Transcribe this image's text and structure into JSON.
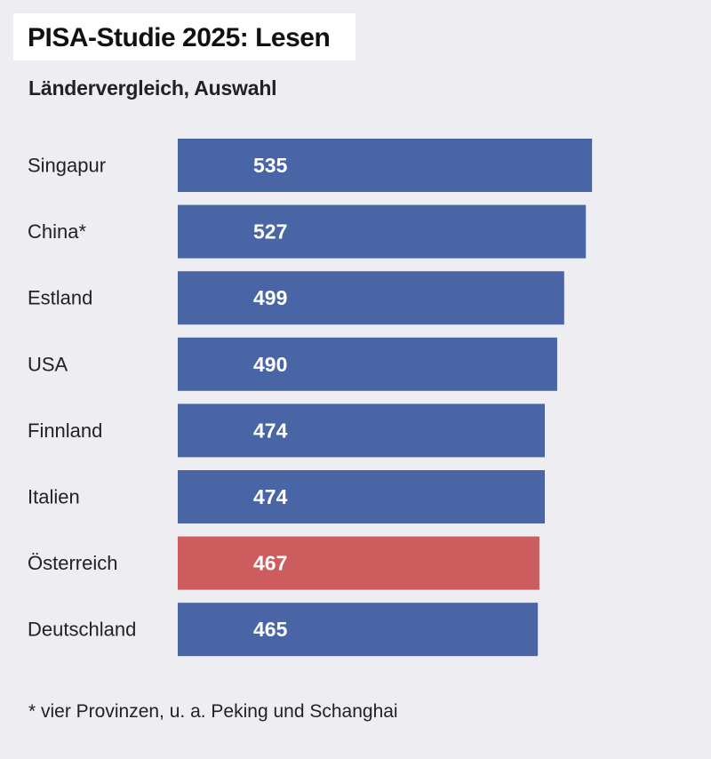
{
  "header": {
    "title": "PISA-Studie 2025: Lesen",
    "subtitle": "Ländervergleich, Auswahl"
  },
  "footnote": "* vier Provinzen, u. a. Peking und Schanghai",
  "colors": {
    "default_bar": "#4965a5",
    "highlight_bar": "#cd5c5e",
    "bar_label": "#ffffff",
    "category_label": "#222222"
  },
  "chart_data": {
    "type": "bar",
    "orientation": "horizontal",
    "title": "PISA-Studie 2025: Lesen",
    "subtitle": "Ländervergleich, Auswahl",
    "categories": [
      "Singapur",
      "China*",
      "Estland",
      "USA",
      "Finnland",
      "Italien",
      "Österreich",
      "Deutschland"
    ],
    "values": [
      535,
      527,
      499,
      490,
      474,
      474,
      467,
      465
    ],
    "highlight": [
      "Österreich"
    ],
    "data_labels": true,
    "grid": false,
    "legend": "none"
  }
}
